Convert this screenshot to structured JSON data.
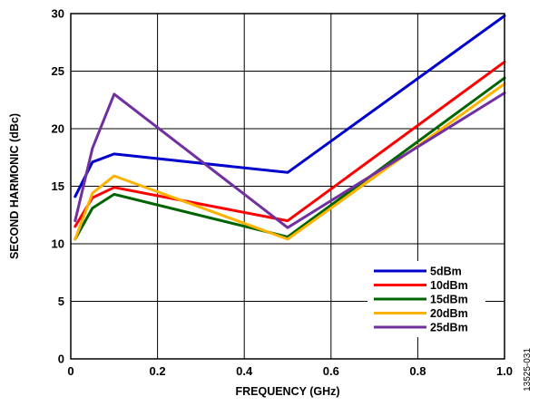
{
  "chart_data": {
    "type": "line",
    "title": "",
    "xlabel": "FREQUENCY (GHz)",
    "ylabel": "SECOND HARMONIC (dBc)",
    "xlim": [
      0,
      1.0
    ],
    "ylim": [
      0,
      30
    ],
    "x_ticks": [
      0,
      0.2,
      0.4,
      0.6,
      0.8,
      1.0
    ],
    "x_tick_labels": [
      "0",
      "0.2",
      "0.4",
      "0.6",
      "0.8",
      "1.0"
    ],
    "y_ticks": [
      0,
      5,
      10,
      15,
      20,
      25,
      30
    ],
    "y_tick_labels": [
      "0",
      "5",
      "10",
      "15",
      "20",
      "25",
      "30"
    ],
    "grid": true,
    "legend_position": "bottom-right",
    "x": [
      0.01,
      0.05,
      0.1,
      0.5,
      1.0
    ],
    "series": [
      {
        "name": "5dBm",
        "color": "#0000cc",
        "values": [
          14.1,
          17.1,
          17.8,
          16.2,
          29.8
        ]
      },
      {
        "name": "10dBm",
        "color": "#ff0000",
        "values": [
          11.5,
          14.0,
          14.9,
          12.0,
          25.8
        ]
      },
      {
        "name": "15dBm",
        "color": "#006400",
        "values": [
          10.4,
          13.1,
          14.3,
          10.6,
          24.4
        ]
      },
      {
        "name": "20dBm",
        "color": "#ffb300",
        "values": [
          10.4,
          14.4,
          15.9,
          10.4,
          23.9
        ]
      },
      {
        "name": "25dBm",
        "color": "#7030a0",
        "values": [
          12.0,
          18.3,
          23.0,
          11.4,
          23.1
        ]
      }
    ]
  },
  "figure_id": "13525-031"
}
